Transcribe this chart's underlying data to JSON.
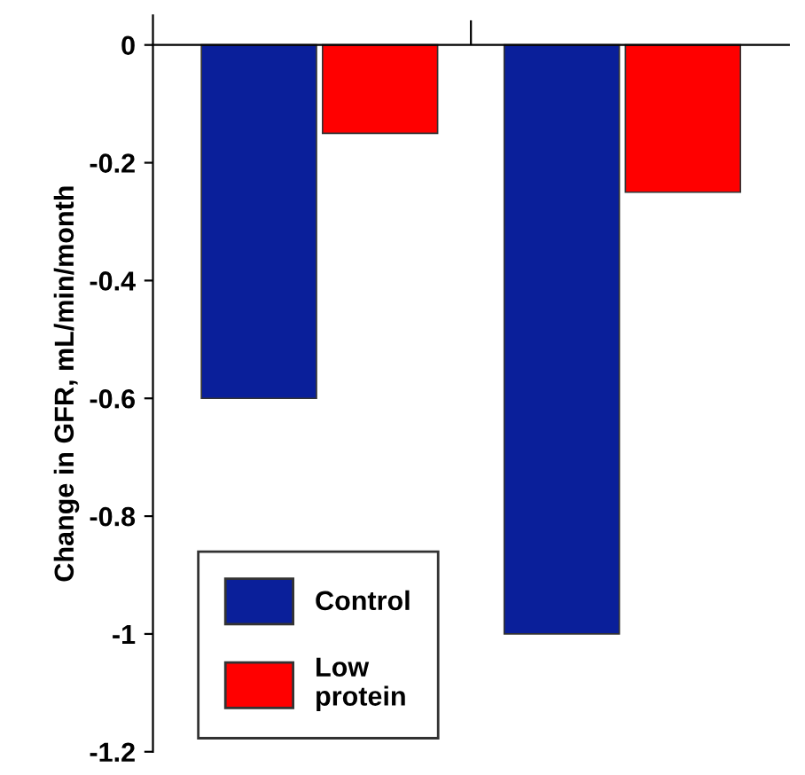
{
  "chart_data": {
    "type": "bar",
    "ylabel": "Change in GFR, mL/min/month",
    "categories": [
      null,
      null
    ],
    "series": [
      {
        "name": "Control",
        "color": "#0a1f9a",
        "values": [
          -0.6,
          -1.0
        ]
      },
      {
        "name": "Low\nprotein",
        "color": "#ff0000",
        "values": [
          -0.15,
          -0.25
        ]
      }
    ],
    "ylim": [
      -1.2,
      0.05
    ],
    "yticks": [
      0,
      -0.2,
      -0.4,
      -0.6,
      -0.8,
      -1,
      -1.2
    ],
    "legend": "bottom left"
  }
}
